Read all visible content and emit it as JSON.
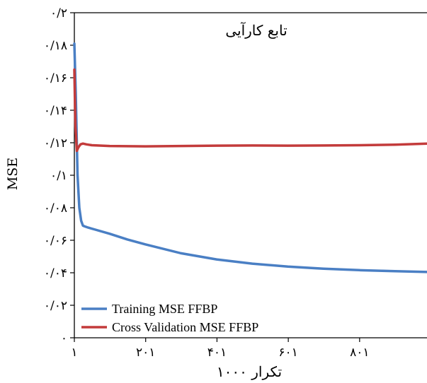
{
  "chart_data": {
    "type": "line",
    "title": "تابع کارآیی",
    "xlabel": "تکرار ۱۰۰۰",
    "ylabel": "MSE",
    "xlim": [
      1,
      990
    ],
    "ylim": [
      0,
      0.2
    ],
    "x_ticks": [
      {
        "value": 1,
        "label": "۱"
      },
      {
        "value": 201,
        "label": "۲۰۱"
      },
      {
        "value": 401,
        "label": "۴۰۱"
      },
      {
        "value": 601,
        "label": "۶۰۱"
      },
      {
        "value": 801,
        "label": "۸۰۱"
      }
    ],
    "y_ticks": [
      {
        "value": 0,
        "label": "۰"
      },
      {
        "value": 0.02,
        "label": "۰/۰۲"
      },
      {
        "value": 0.04,
        "label": "۰/۰۴"
      },
      {
        "value": 0.06,
        "label": "۰/۰۶"
      },
      {
        "value": 0.08,
        "label": "۰/۰۸"
      },
      {
        "value": 0.1,
        "label": "۰/۱"
      },
      {
        "value": 0.12,
        "label": "۰/۱۲"
      },
      {
        "value": 0.14,
        "label": "۰/۱۴"
      },
      {
        "value": 0.16,
        "label": "۰/۱۶"
      },
      {
        "value": 0.18,
        "label": "۰/۱۸"
      },
      {
        "value": 0.2,
        "label": "۰/۲"
      }
    ],
    "grid": false,
    "legend_position": "bottom-left",
    "series": [
      {
        "name": "Training MSE FFBP",
        "color": "#4a7fc4",
        "x": [
          1,
          5,
          10,
          15,
          20,
          25,
          30,
          40,
          60,
          100,
          150,
          200,
          300,
          400,
          500,
          600,
          700,
          800,
          900,
          990
        ],
        "y": [
          0.181,
          0.15,
          0.1,
          0.08,
          0.072,
          0.069,
          0.0685,
          0.0678,
          0.0665,
          0.064,
          0.0605,
          0.0575,
          0.052,
          0.0482,
          0.0456,
          0.0438,
          0.0425,
          0.0416,
          0.041,
          0.0405
        ]
      },
      {
        "name": "Cross Validation MSE FFBP",
        "color": "#c33b3b",
        "x": [
          1,
          4,
          8,
          12,
          18,
          25,
          35,
          50,
          100,
          200,
          300,
          400,
          500,
          600,
          700,
          800,
          900,
          990
        ],
        "y": [
          0.165,
          0.13,
          0.115,
          0.117,
          0.119,
          0.1195,
          0.119,
          0.1185,
          0.118,
          0.1178,
          0.118,
          0.1182,
          0.1183,
          0.1182,
          0.1183,
          0.1185,
          0.1188,
          0.1195
        ]
      }
    ]
  }
}
